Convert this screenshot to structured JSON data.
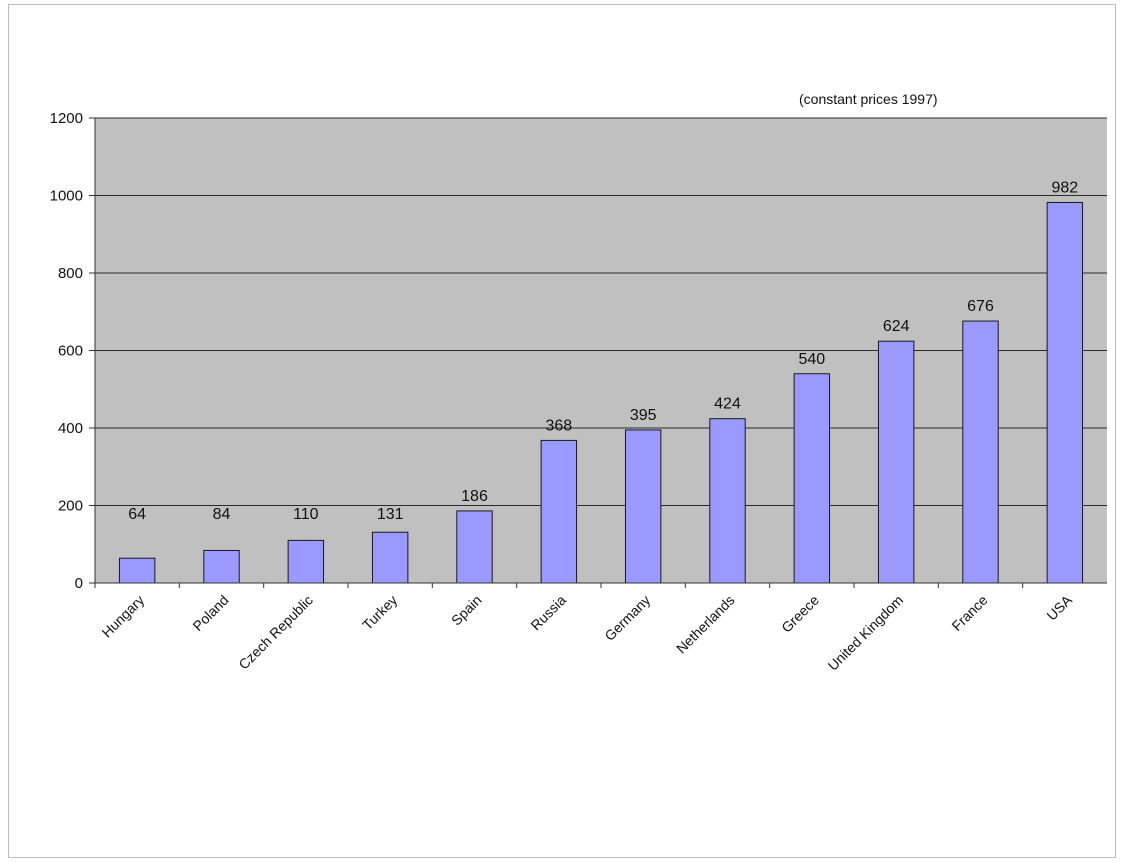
{
  "chart_data": {
    "type": "bar",
    "annotation": "(constant prices 1997)",
    "categories": [
      "Hungary",
      "Poland",
      "Czech Republic",
      "Turkey",
      "Spain",
      "Russia",
      "Germany",
      "Netherlands",
      "Greece",
      "United Kingdom",
      "France",
      "USA"
    ],
    "values": [
      64,
      84,
      110,
      131,
      186,
      368,
      395,
      424,
      540,
      624,
      676,
      982
    ],
    "ylim": [
      0,
      1200
    ],
    "yticks": [
      0,
      200,
      400,
      600,
      800,
      1000,
      1200
    ],
    "grid": true,
    "legend": false,
    "colors": {
      "bar": "#9999ff",
      "bar_border": "#1a1a1a",
      "plot_background": "#c0c0c0",
      "gridline": "#2b2b2b"
    }
  }
}
